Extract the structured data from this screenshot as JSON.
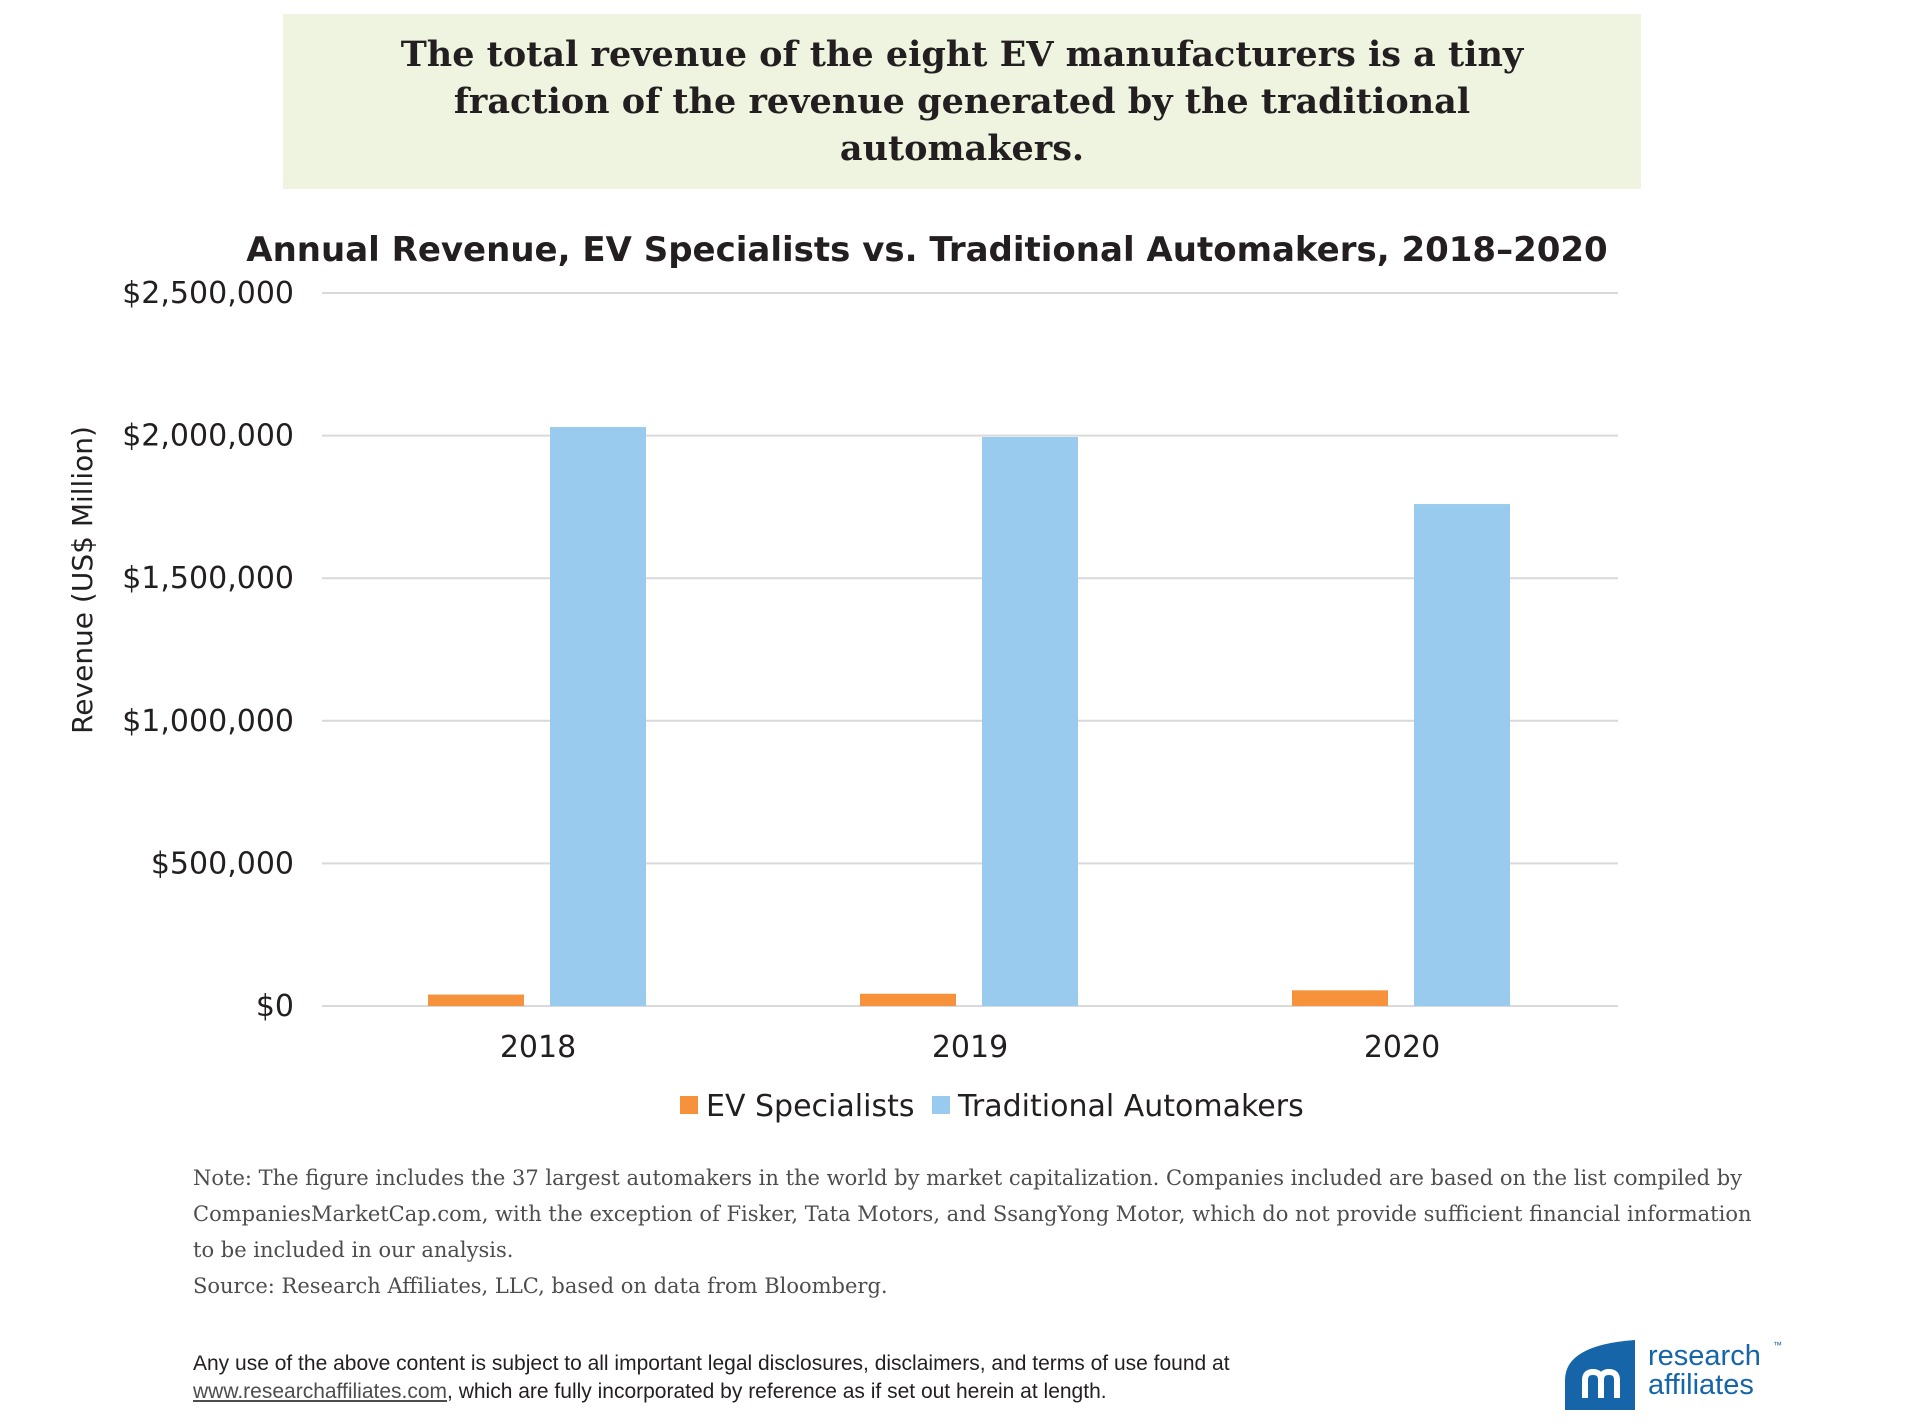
{
  "headline": "The total revenue of the eight EV manufacturers is a tiny fraction of the revenue generated by the traditional automakers.",
  "chart_data": {
    "type": "bar",
    "title": "Annual Revenue, EV Specialists vs. Traditional Automakers, 2018–2020",
    "xlabel": "",
    "ylabel": "Revenue (US$ Million)",
    "categories": [
      "2018",
      "2019",
      "2020"
    ],
    "ylim": [
      0,
      2500000
    ],
    "yticks": [
      0,
      500000,
      1000000,
      1500000,
      2000000,
      2500000
    ],
    "ytick_labels": [
      "$0",
      "$500,000",
      "$1,000,000",
      "$1,500,000",
      "$2,000,000",
      "$2,500,000"
    ],
    "grid": true,
    "legend_position": "bottom",
    "series": [
      {
        "name": "EV Specialists",
        "color": "#f6923c",
        "values": [
          40000,
          43000,
          55000
        ]
      },
      {
        "name": "Traditional Automakers",
        "color": "#99cbee",
        "values": [
          2030000,
          1995000,
          1760000
        ]
      }
    ]
  },
  "note": {
    "lines": [
      "Note: The figure includes the 37 largest automakers in the world by market capitalization. Companies included are based on the list compiled by CompaniesMarketCap.com, with the exception of Fisker, Tata Motors, and SsangYong Motor, which do not provide sufficient financial information to be included in our analysis.",
      "Source: Research Affiliates, LLC, based on data from Bloomberg."
    ]
  },
  "disclaimer": {
    "prefix": "Any use of the above content is subject to all important legal disclosures, disclaimers, and terms of use found at",
    "link": "www.researchaffiliates.com",
    "suffix": ", which are fully incorporated by reference as if set out herein at length."
  },
  "logo": {
    "line1": "research",
    "line2": "affiliates",
    "trademark": "™",
    "color": "#1565a8"
  }
}
